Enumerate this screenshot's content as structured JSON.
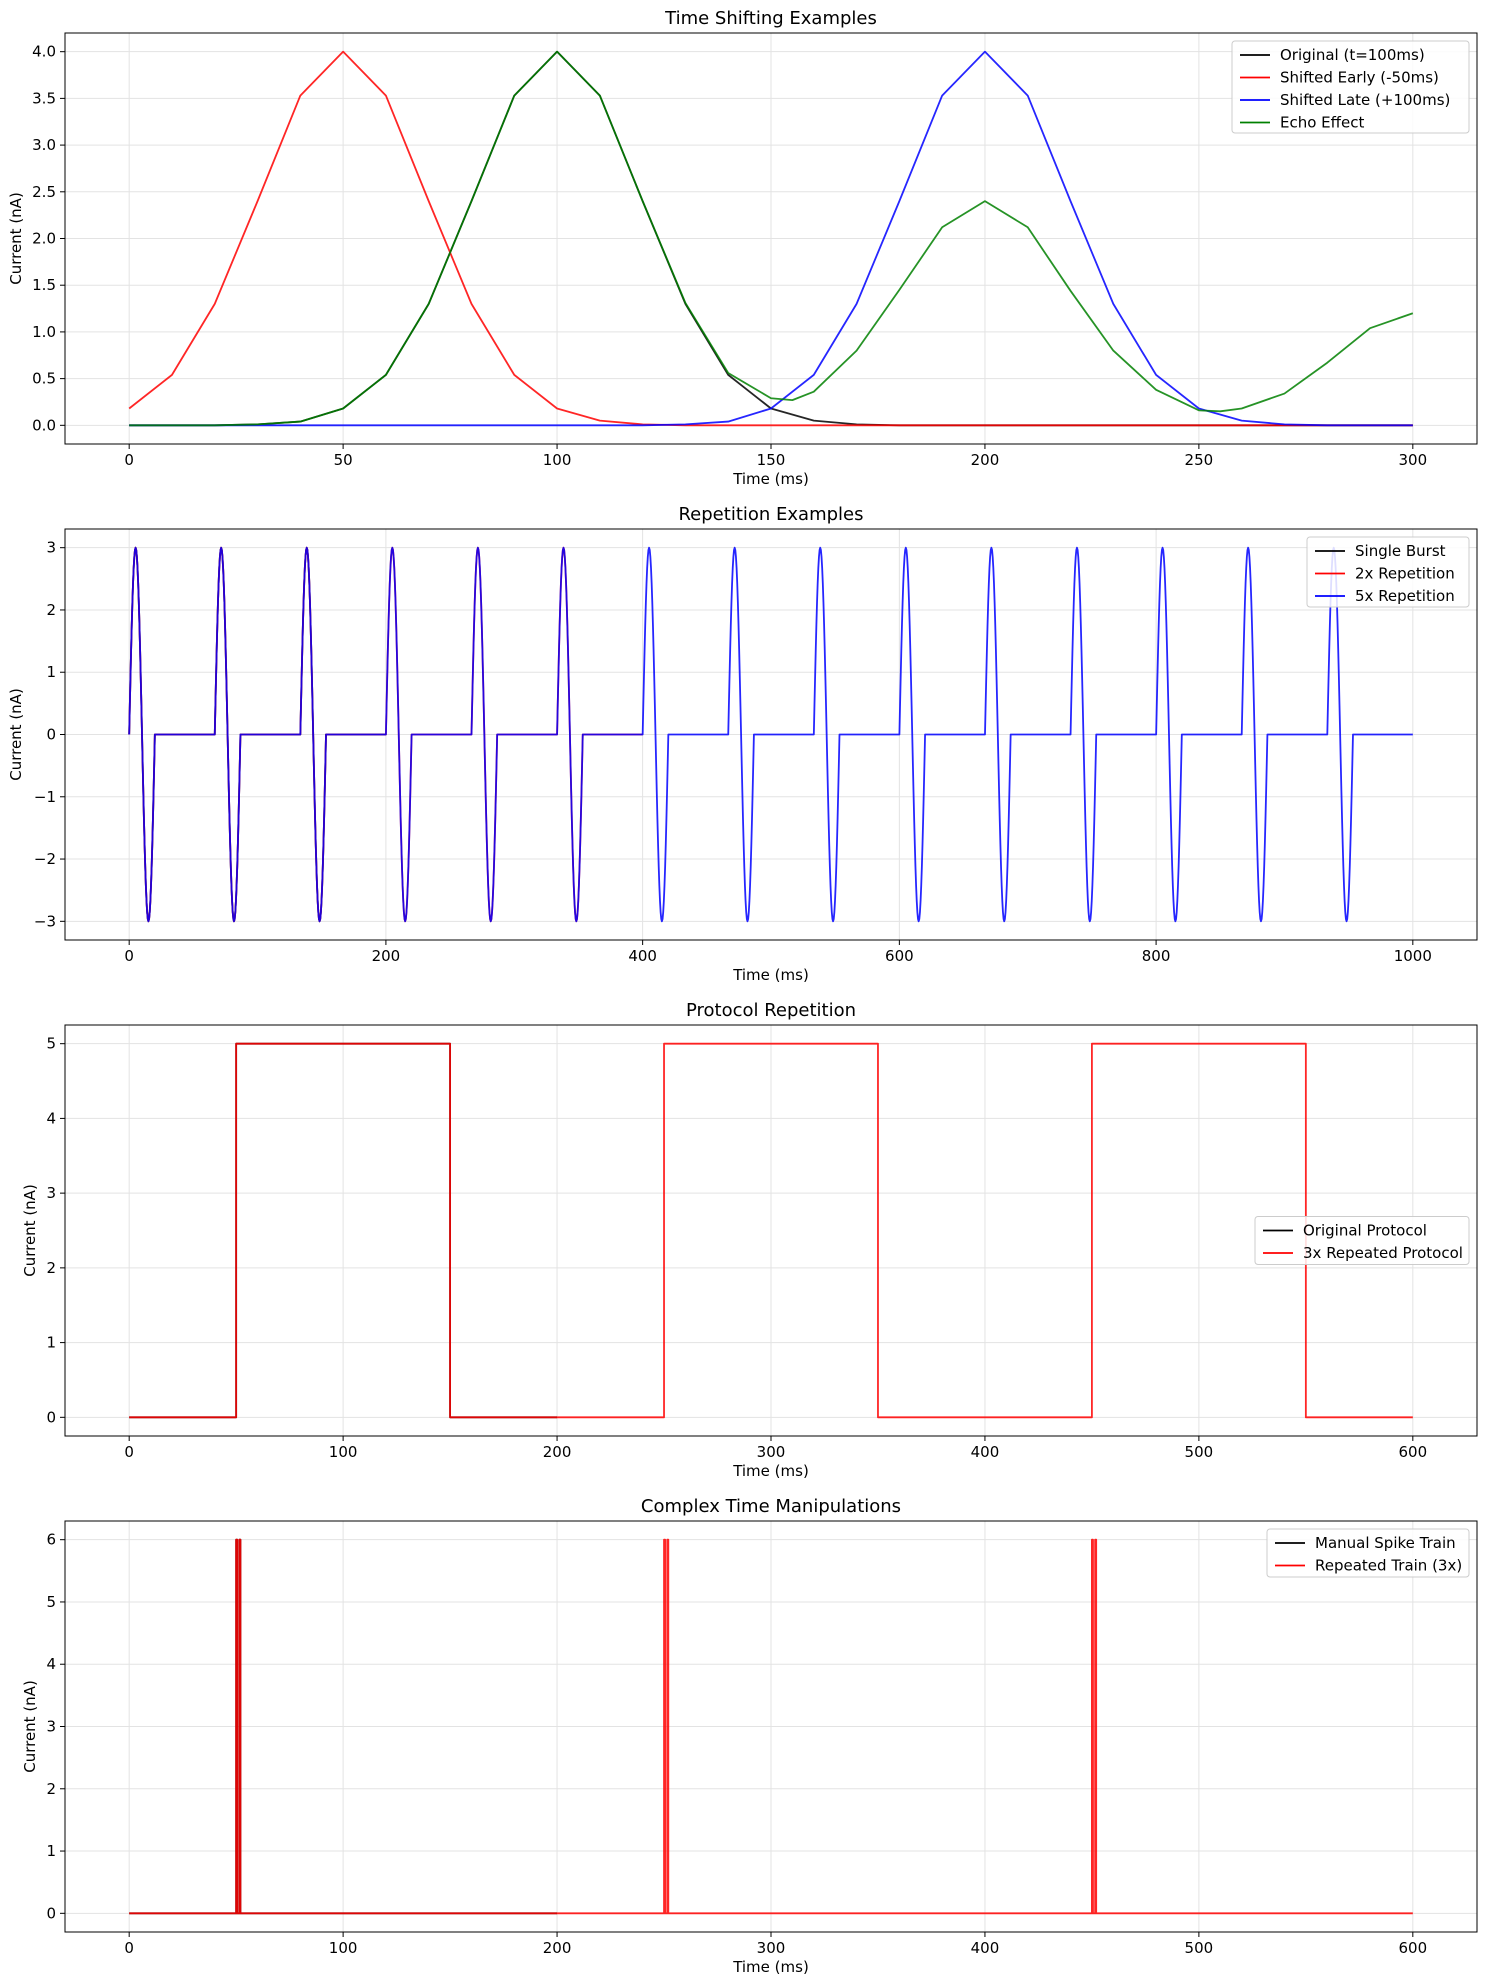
{
  "chart_data": [
    {
      "type": "line",
      "title": "Time Shifting Examples",
      "xlabel": "Time (ms)",
      "ylabel": "Current (nA)",
      "xlim": [
        -15,
        315
      ],
      "ylim": [
        -0.2,
        4.2
      ],
      "xticks": [
        0,
        50,
        100,
        150,
        200,
        250,
        300
      ],
      "yticks": [
        0.0,
        0.5,
        1.0,
        1.5,
        2.0,
        2.5,
        3.0,
        3.5,
        4.0
      ],
      "ytick_format": "fixed1",
      "grid": true,
      "legend_position": "top-right",
      "series": [
        {
          "name": "Original (t=100ms)",
          "color": "#000000",
          "x": [
            0,
            10,
            20,
            30,
            40,
            50,
            60,
            70,
            80,
            90,
            100,
            110,
            120,
            130,
            140,
            150,
            160,
            170,
            180,
            190,
            200,
            220,
            240,
            260,
            280,
            300
          ],
          "y": [
            0.0,
            0.0,
            0.0,
            0.01,
            0.04,
            0.18,
            0.54,
            1.3,
            2.4,
            3.53,
            4.0,
            3.53,
            2.4,
            1.3,
            0.54,
            0.18,
            0.05,
            0.01,
            0.0,
            0.0,
            0.0,
            0.0,
            0.0,
            0.0,
            0.0,
            0.0
          ]
        },
        {
          "name": "Shifted Early (-50ms)",
          "color": "#ff0000",
          "x": [
            0,
            10,
            20,
            30,
            40,
            50,
            60,
            70,
            80,
            90,
            100,
            110,
            120,
            130,
            140,
            150,
            160,
            170,
            180,
            200,
            220,
            240,
            260,
            280,
            300
          ],
          "y": [
            0.18,
            0.54,
            1.3,
            2.4,
            3.53,
            4.0,
            3.53,
            2.4,
            1.3,
            0.54,
            0.18,
            0.05,
            0.01,
            0.0,
            0.0,
            0.0,
            0.0,
            0.0,
            0.0,
            0.0,
            0.0,
            0.0,
            0.0,
            0.0,
            0.0
          ]
        },
        {
          "name": "Shifted Late (+100ms)",
          "color": "#0000ff",
          "x": [
            0,
            40,
            80,
            120,
            130,
            140,
            150,
            160,
            170,
            180,
            190,
            200,
            210,
            220,
            230,
            240,
            250,
            260,
            270,
            280,
            290,
            300
          ],
          "y": [
            0.0,
            0.0,
            0.0,
            0.0,
            0.01,
            0.04,
            0.18,
            0.54,
            1.3,
            2.4,
            3.53,
            4.0,
            3.53,
            2.4,
            1.3,
            0.54,
            0.18,
            0.05,
            0.01,
            0.0,
            0.0,
            0.0
          ]
        },
        {
          "name": "Echo Effect",
          "color": "#008000",
          "x": [
            0,
            10,
            20,
            30,
            40,
            50,
            60,
            70,
            80,
            90,
            100,
            110,
            120,
            130,
            140,
            150,
            155,
            160,
            170,
            180,
            190,
            200,
            210,
            220,
            230,
            240,
            250,
            255,
            260,
            270,
            280,
            290,
            300
          ],
          "y": [
            0.0,
            0.0,
            0.0,
            0.01,
            0.04,
            0.18,
            0.54,
            1.3,
            2.4,
            3.53,
            4.0,
            3.53,
            2.4,
            1.31,
            0.56,
            0.29,
            0.27,
            0.36,
            0.8,
            1.45,
            2.12,
            2.4,
            2.12,
            1.44,
            0.8,
            0.38,
            0.16,
            0.15,
            0.18,
            0.34,
            0.67,
            1.04,
            1.2
          ]
        }
      ]
    },
    {
      "type": "line",
      "title": "Repetition Examples",
      "xlabel": "Time (ms)",
      "ylabel": "Current (nA)",
      "xlim": [
        -50,
        1050
      ],
      "ylim": [
        -3.3,
        3.3
      ],
      "xticks": [
        0,
        200,
        400,
        600,
        800,
        1000
      ],
      "yticks": [
        -3,
        -2,
        -1,
        0,
        1,
        2,
        3
      ],
      "ytick_format": "int",
      "grid": true,
      "legend_position": "top-right",
      "burst": {
        "length_ms": 20,
        "period_ms": 66.67,
        "amplitude": 3
      },
      "series": [
        {
          "name": "Single Burst",
          "color": "#000000",
          "x_start": 0,
          "x_end": 200,
          "bursts": 3
        },
        {
          "name": "2x Repetition",
          "color": "#ff0000",
          "x_start": 0,
          "x_end": 400,
          "bursts": 6
        },
        {
          "name": "5x Repetition",
          "color": "#0000ff",
          "x_start": 0,
          "x_end": 1000,
          "bursts": 15
        }
      ]
    },
    {
      "type": "line",
      "title": "Protocol Repetition",
      "xlabel": "Time (ms)",
      "ylabel": "Current (nA)",
      "xlim": [
        -30,
        630
      ],
      "ylim": [
        -0.25,
        5.25
      ],
      "xticks": [
        0,
        100,
        200,
        300,
        400,
        500,
        600
      ],
      "yticks": [
        0,
        1,
        2,
        3,
        4,
        5
      ],
      "ytick_format": "int",
      "grid": true,
      "legend_position": "center-right",
      "series": [
        {
          "name": "Original Protocol",
          "color": "#000000",
          "x": [
            0,
            50,
            50,
            150,
            150,
            200
          ],
          "y": [
            0,
            0,
            5,
            5,
            0,
            0
          ]
        },
        {
          "name": "3x Repeated Protocol",
          "color": "#ff0000",
          "x": [
            0,
            50,
            50,
            150,
            150,
            250,
            250,
            350,
            350,
            450,
            450,
            550,
            550,
            600
          ],
          "y": [
            0,
            0,
            5,
            5,
            0,
            0,
            5,
            5,
            0,
            0,
            5,
            5,
            0,
            0
          ]
        }
      ]
    },
    {
      "type": "line",
      "title": "Complex Time Manipulations",
      "xlabel": "Time (ms)",
      "ylabel": "Current (nA)",
      "xlim": [
        -30,
        630
      ],
      "ylim": [
        -0.3,
        6.3
      ],
      "xticks": [
        0,
        100,
        200,
        300,
        400,
        500,
        600
      ],
      "yticks": [
        0,
        1,
        2,
        3,
        4,
        5,
        6
      ],
      "ytick_format": "int",
      "grid": true,
      "legend_position": "top-right",
      "series": [
        {
          "name": "Manual Spike Train",
          "color": "#000000",
          "x": [
            0,
            50,
            50,
            50.5,
            50.5,
            51.5,
            51.5,
            52,
            52,
            200
          ],
          "y": [
            0,
            0,
            6,
            6,
            0,
            0,
            6,
            6,
            0,
            0
          ]
        },
        {
          "name": "Repeated Train (3x)",
          "color": "#ff0000",
          "x": [
            0,
            50,
            50,
            50.5,
            50.5,
            51.5,
            51.5,
            52,
            52,
            250,
            250,
            250.5,
            250.5,
            251.5,
            251.5,
            252,
            252,
            450,
            450,
            450.5,
            450.5,
            451.5,
            451.5,
            452,
            452,
            600
          ],
          "y": [
            0,
            0,
            6,
            6,
            0,
            0,
            6,
            6,
            0,
            0,
            6,
            6,
            0,
            0,
            6,
            6,
            0,
            0,
            6,
            6,
            0,
            0,
            6,
            6,
            0,
            0
          ]
        }
      ]
    }
  ]
}
